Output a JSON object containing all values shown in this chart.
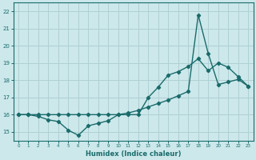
{
  "xlabel": "Humidex (Indice chaleur)",
  "xlim": [
    -0.5,
    23.5
  ],
  "ylim": [
    14.5,
    22.5
  ],
  "xticks": [
    0,
    1,
    2,
    3,
    4,
    5,
    6,
    7,
    8,
    9,
    10,
    11,
    12,
    13,
    14,
    15,
    16,
    17,
    18,
    19,
    20,
    21,
    22,
    23
  ],
  "yticks": [
    15,
    16,
    17,
    18,
    19,
    20,
    21,
    22
  ],
  "bg_color": "#cce8eb",
  "grid_color": "#b0d0d4",
  "line_color": "#1a6b6b",
  "line1_x": [
    0,
    1,
    2,
    3,
    4,
    5,
    6,
    7,
    8,
    9,
    10,
    11,
    12,
    13,
    14,
    15,
    16,
    17,
    18,
    19,
    20,
    21,
    22,
    23
  ],
  "line1_y": [
    16.0,
    16.0,
    15.9,
    15.7,
    15.6,
    15.1,
    14.8,
    15.35,
    15.5,
    15.65,
    16.0,
    16.0,
    16.0,
    17.0,
    17.6,
    18.3,
    18.5,
    18.8,
    19.25,
    18.55,
    19.0,
    18.75,
    18.2,
    17.65
  ],
  "line2_x": [
    0,
    1,
    2,
    3,
    4,
    5,
    6,
    7,
    8,
    9,
    10,
    11,
    12,
    13,
    14,
    15,
    16,
    17,
    18,
    19,
    20,
    21,
    22,
    23
  ],
  "line2_y": [
    16.0,
    16.0,
    16.0,
    16.0,
    16.0,
    16.0,
    16.0,
    16.0,
    16.0,
    16.0,
    16.0,
    16.1,
    16.25,
    16.45,
    16.65,
    16.85,
    17.1,
    17.35,
    21.8,
    19.55,
    17.75,
    17.9,
    18.05,
    17.65
  ],
  "marker_style": "D",
  "marker_size": 2.2,
  "line_width": 1.0
}
